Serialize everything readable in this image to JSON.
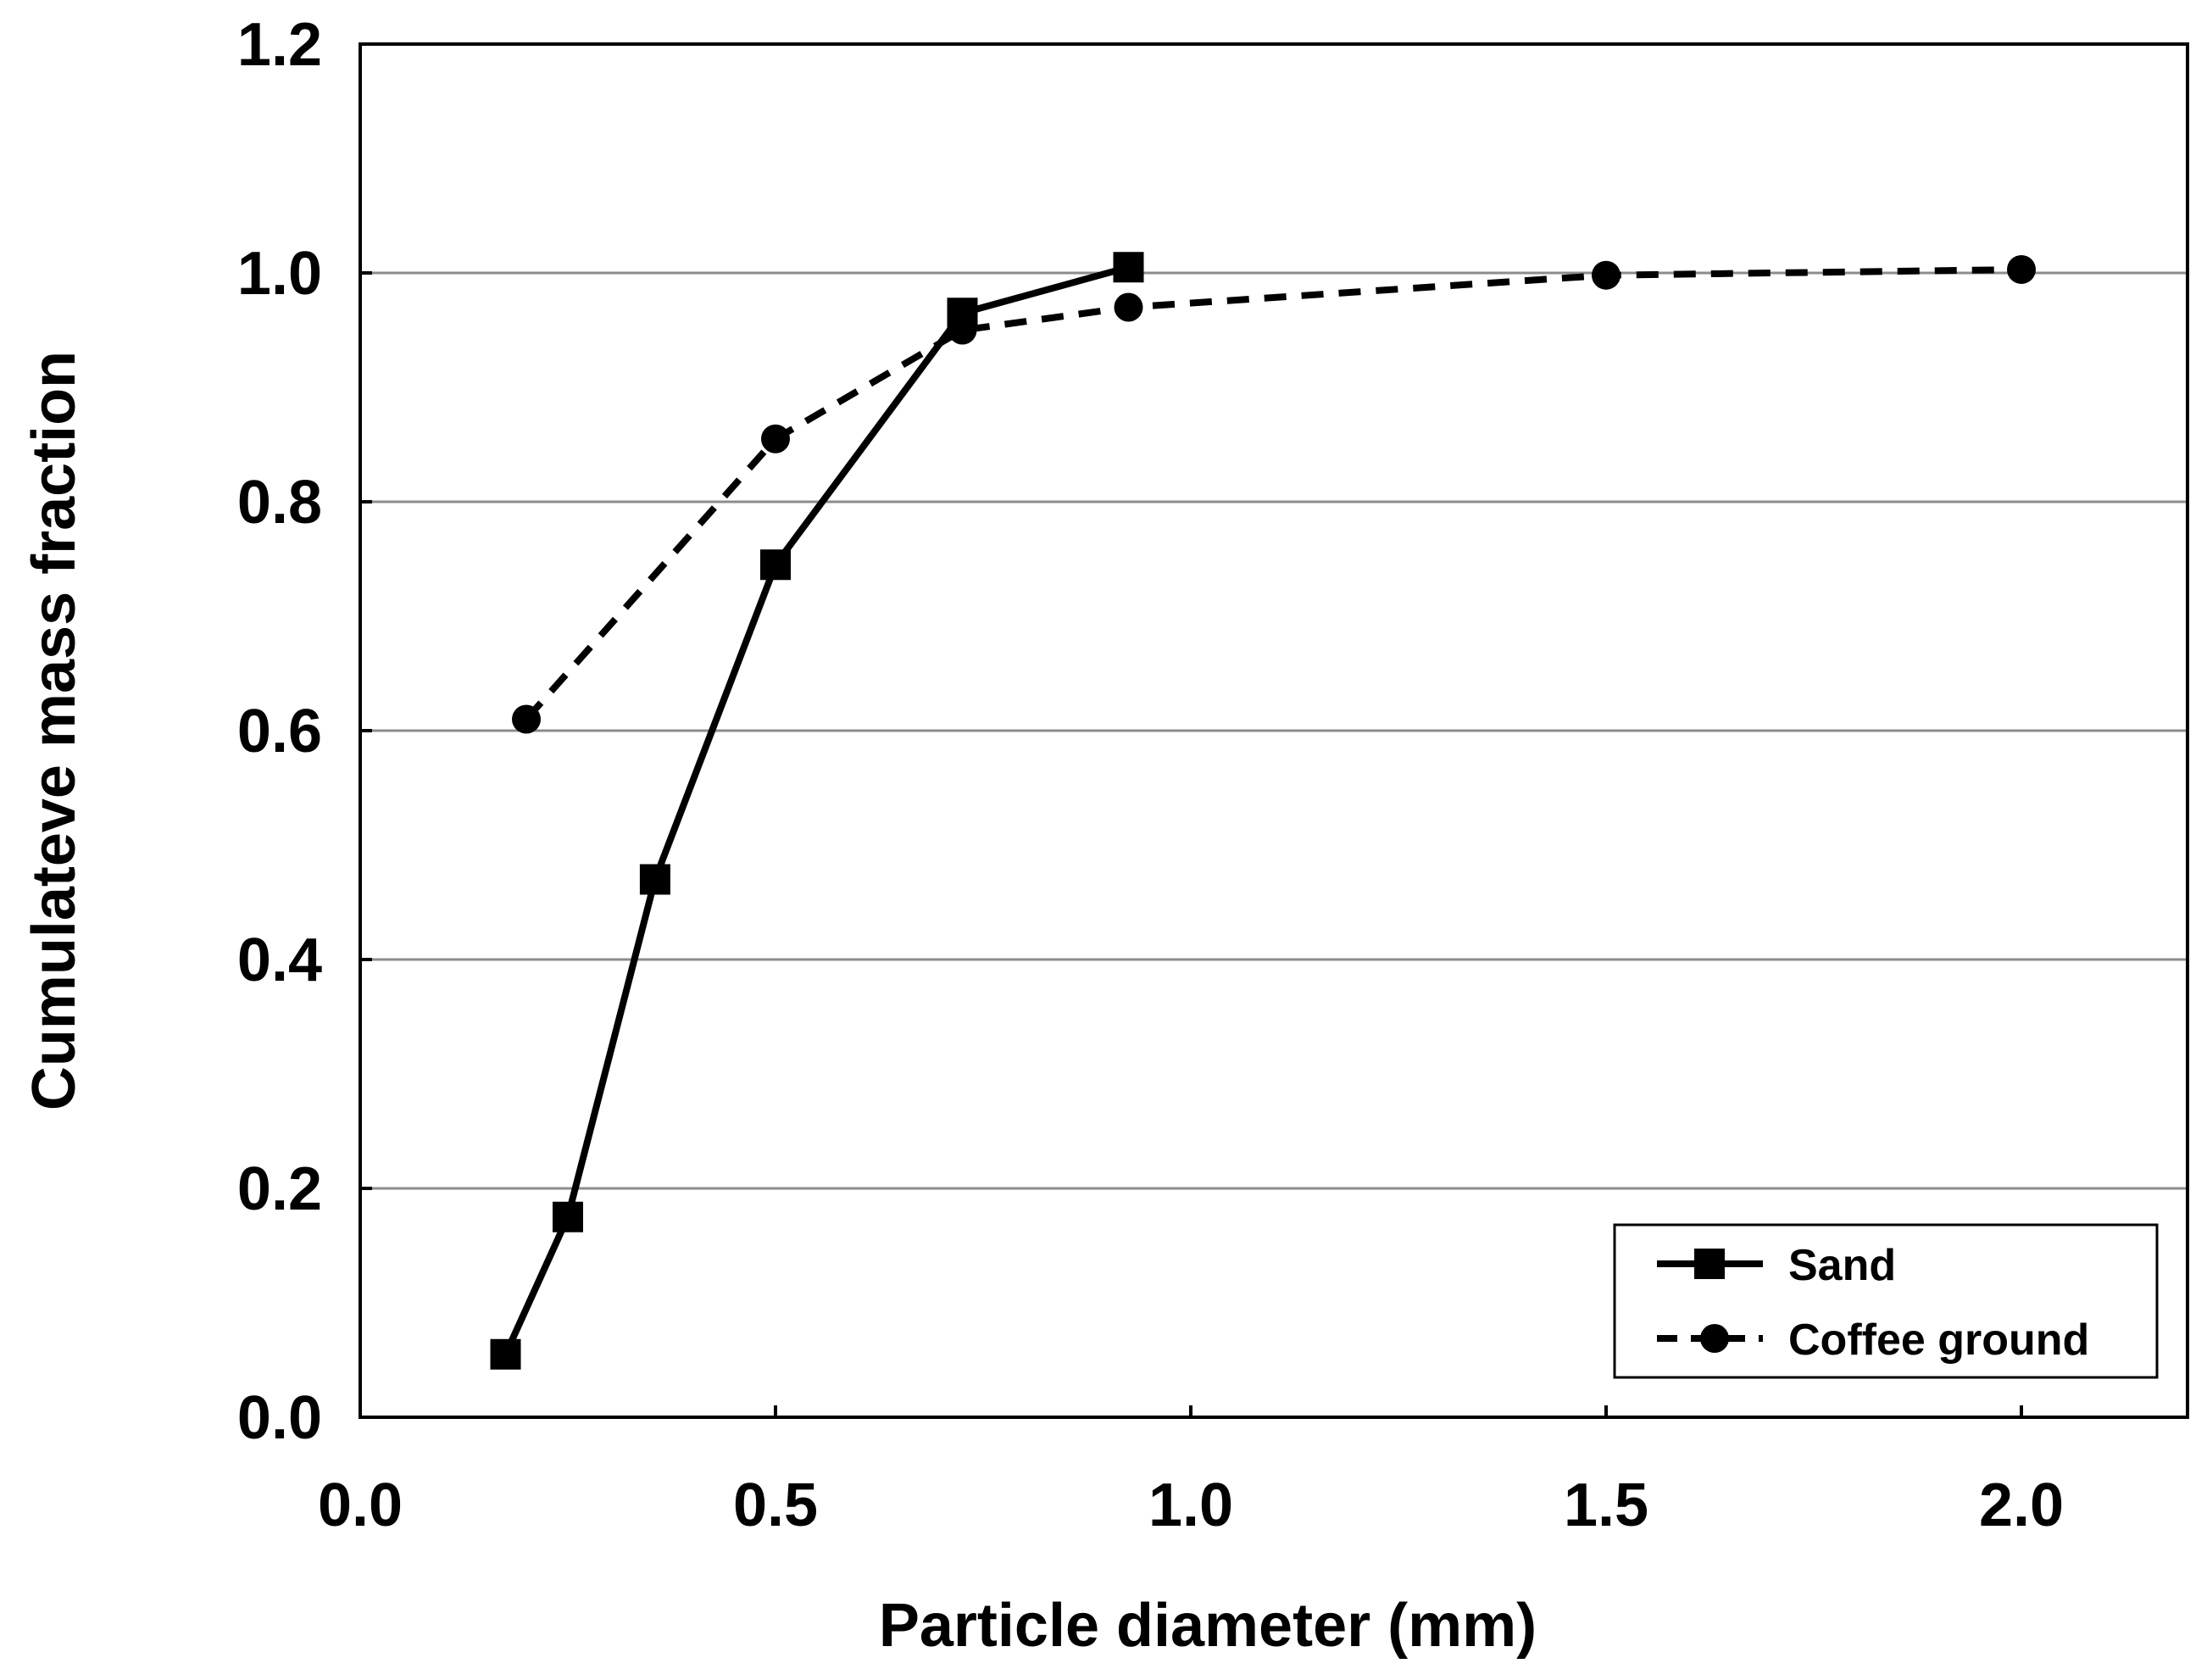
{
  "chart_data": {
    "type": "line",
    "title": "",
    "xlabel": "Particle diameter (mm)",
    "ylabel": "Cumulateve mass fraction",
    "xlim": [
      0.0,
      2.2
    ],
    "ylim": [
      0.0,
      1.2
    ],
    "x_ticks": [
      0.0,
      0.5,
      1.0,
      1.5,
      2.0
    ],
    "x_tick_labels": [
      "0.0",
      "0.5",
      "1.0",
      "1.5",
      "2.0"
    ],
    "y_ticks": [
      0.0,
      0.2,
      0.4,
      0.6,
      0.8,
      1.0,
      1.2
    ],
    "y_tick_labels": [
      "0.0",
      "0.2",
      "0.4",
      "0.6",
      "0.8",
      "1.0",
      "1.2"
    ],
    "grid": "horizontal",
    "legend_position": "bottom-right",
    "series": [
      {
        "name": "Sand",
        "line_style": "solid",
        "marker": "square",
        "color": "#000000",
        "x": [
          0.175,
          0.25,
          0.355,
          0.5,
          0.725,
          0.925
        ],
        "y": [
          0.055,
          0.175,
          0.47,
          0.745,
          0.965,
          1.005
        ]
      },
      {
        "name": "Coffee ground",
        "line_style": "dashed",
        "marker": "circle",
        "color": "#000000",
        "x": [
          0.2,
          0.5,
          0.725,
          0.925,
          1.5,
          2.0
        ],
        "y": [
          0.61,
          0.855,
          0.95,
          0.97,
          0.998,
          1.003
        ]
      }
    ]
  }
}
